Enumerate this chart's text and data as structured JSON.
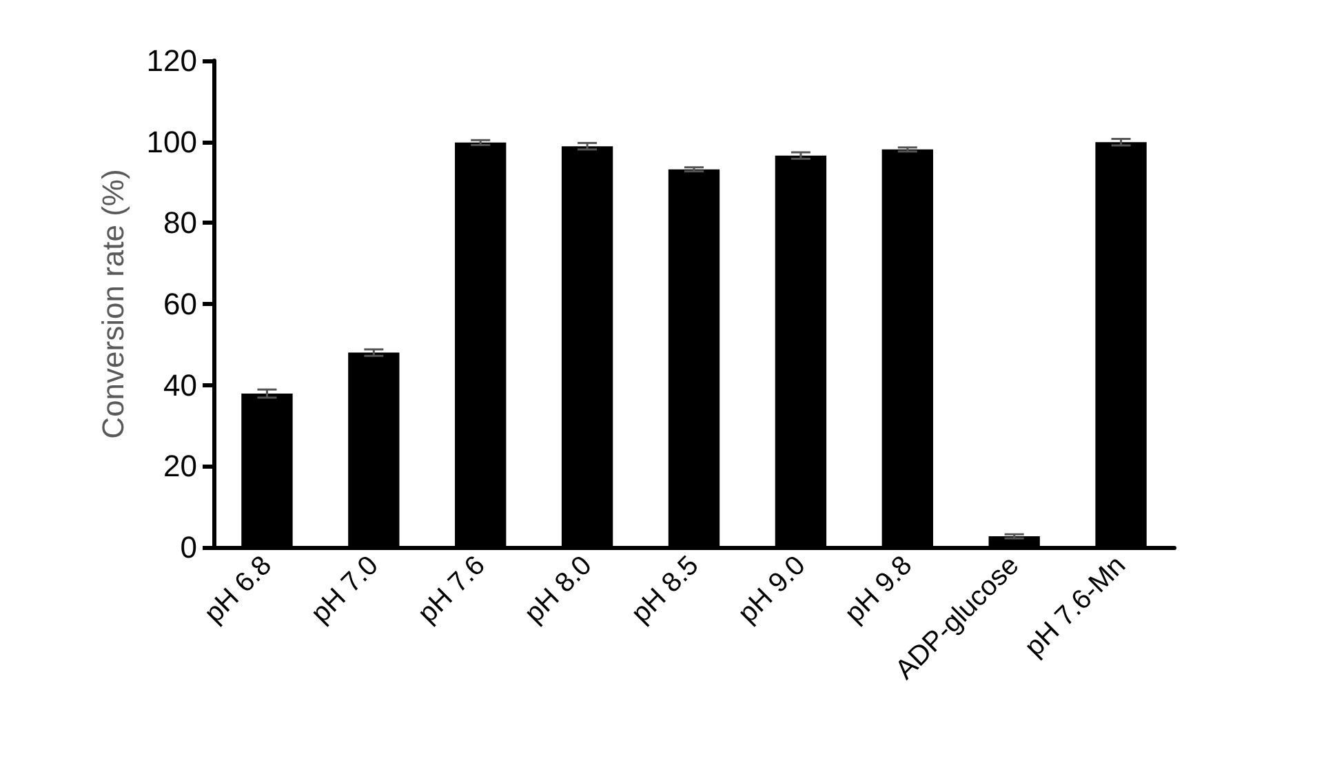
{
  "chart_data": {
    "type": "bar",
    "ylabel": "Conversion rate (%)",
    "categories": [
      "pH 6.8",
      "pH 7.0",
      "pH 7.6",
      "pH 8.0",
      "pH 8.5",
      "pH 9.0",
      "pH 9.8",
      "ADP-glucose",
      "pH 7.6-Mn"
    ],
    "values": [
      37.9,
      48.0,
      99.8,
      98.9,
      93.2,
      96.6,
      98.1,
      2.7,
      99.9
    ],
    "errors": [
      1,
      0.8,
      0.6,
      0.8,
      0.5,
      0.8,
      0.5,
      0.5,
      0.8
    ],
    "color": "#000000",
    "ylim": [
      0,
      120
    ],
    "yticks": [
      0,
      20,
      40,
      60,
      80,
      100,
      120
    ],
    "grid": false
  }
}
